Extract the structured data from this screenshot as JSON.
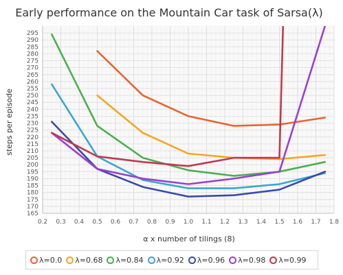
{
  "chart_data": {
    "type": "line",
    "title": "Early performance on the Mountain Car task of Sarsa(λ)",
    "xlabel": "α x number of tilings (8)",
    "ylabel": "steps per episode",
    "xlim": [
      0.2,
      1.8
    ],
    "ylim": [
      165,
      300
    ],
    "xticks": [
      "0.2",
      "0.3",
      "0.4",
      "0.5",
      "0.6",
      "0.7",
      "0.8",
      "0.9",
      "1.0",
      "1.1",
      "1.2",
      "1.3",
      "1.4",
      "1.5",
      "1.6",
      "1.7",
      "1.8"
    ],
    "yticks": [
      "165",
      "170",
      "175",
      "180",
      "185",
      "190",
      "195",
      "200",
      "205",
      "210",
      "215",
      "220",
      "225",
      "230",
      "235",
      "240",
      "245",
      "250",
      "255",
      "260",
      "265",
      "270",
      "275",
      "280",
      "285",
      "290",
      "295"
    ],
    "grid": true,
    "legend_position": "bottom",
    "series": [
      {
        "name": "λ=0.0",
        "color": "#e8642c",
        "x": [
          0.5,
          0.75,
          1.0,
          1.25,
          1.5,
          1.75
        ],
        "y": [
          282,
          250,
          235,
          228,
          229,
          234
        ]
      },
      {
        "name": "λ=0.68",
        "color": "#f5a623",
        "x": [
          0.5,
          0.75,
          1.0,
          1.25,
          1.5,
          1.75
        ],
        "y": [
          250,
          223,
          208,
          205,
          204,
          207
        ]
      },
      {
        "name": "λ=0.84",
        "color": "#4caf50",
        "x": [
          0.25,
          0.5,
          0.75,
          1.0,
          1.25,
          1.5,
          1.75
        ],
        "y": [
          294,
          228,
          205,
          196,
          192,
          195,
          202
        ]
      },
      {
        "name": "λ=0.92",
        "color": "#3aa6d0",
        "x": [
          0.25,
          0.5,
          0.75,
          1.0,
          1.25,
          1.5,
          1.75
        ],
        "y": [
          258,
          206,
          189,
          183,
          183,
          186,
          194
        ]
      },
      {
        "name": "λ=0.96",
        "color": "#3949ab",
        "x": [
          0.25,
          0.5,
          0.75,
          1.0,
          1.25,
          1.5,
          1.75
        ],
        "y": [
          231,
          197,
          184,
          177,
          178,
          182,
          195
        ]
      },
      {
        "name": "λ=0.98",
        "color": "#9c3fd1",
        "x": [
          0.25,
          0.5,
          0.75,
          1.0,
          1.25,
          1.5,
          1.75
        ],
        "y": [
          223,
          197,
          190,
          186,
          190,
          195,
          300
        ]
      },
      {
        "name": "λ=0.99",
        "color": "#c2384f",
        "x": [
          0.25,
          0.5,
          0.75,
          1.0,
          1.25,
          1.5,
          1.52
        ],
        "y": [
          223,
          206,
          202,
          199,
          205,
          205,
          300
        ]
      }
    ]
  }
}
